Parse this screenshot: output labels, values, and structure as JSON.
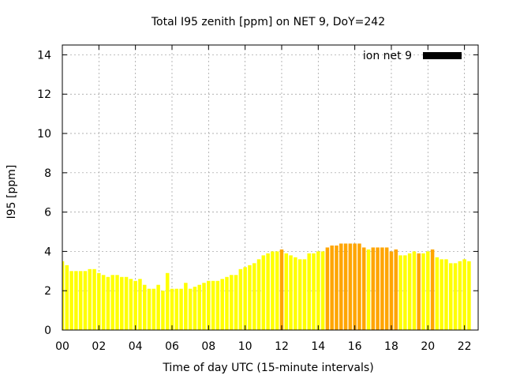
{
  "chart_data": {
    "type": "bar",
    "title": "Total I95 zenith [ppm] on NET 9, DoY=242",
    "xlabel": "Time of day UTC (15-minute intervals)",
    "ylabel": "I95 [ppm]",
    "xlim": [
      0,
      22.75
    ],
    "ylim": [
      0,
      14.5
    ],
    "x_ticks": [
      "00",
      "02",
      "04",
      "06",
      "08",
      "10",
      "12",
      "14",
      "16",
      "18",
      "20",
      "22"
    ],
    "x_tick_values": [
      0,
      2,
      4,
      6,
      8,
      10,
      12,
      14,
      16,
      18,
      20,
      22
    ],
    "y_ticks": [
      0,
      2,
      4,
      6,
      8,
      10,
      12,
      14
    ],
    "grid": true,
    "legend_position": "top-right",
    "colors": {
      "normal": "#ffff00",
      "highlight": "#ffa500",
      "legend": "#000000"
    },
    "series": [
      {
        "name": "ion net 9",
        "x_start": 0,
        "x_step": 0.25,
        "values": [
          3.5,
          3.3,
          3.0,
          3.0,
          3.0,
          3.0,
          3.1,
          3.1,
          2.9,
          2.8,
          2.7,
          2.8,
          2.8,
          2.7,
          2.7,
          2.6,
          2.5,
          2.6,
          2.3,
          2.1,
          2.1,
          2.3,
          2.0,
          2.9,
          2.1,
          2.1,
          2.1,
          2.4,
          2.1,
          2.2,
          2.3,
          2.4,
          2.5,
          2.5,
          2.5,
          2.6,
          2.7,
          2.8,
          2.8,
          3.1,
          3.2,
          3.3,
          3.4,
          3.6,
          3.8,
          3.9,
          4.0,
          4.0,
          4.1,
          3.9,
          3.8,
          3.7,
          3.6,
          3.6,
          3.9,
          3.9,
          4.0,
          4.0,
          4.2,
          4.3,
          4.3,
          4.4,
          4.4,
          4.4,
          4.4,
          4.4,
          4.2,
          4.1,
          4.2,
          4.2,
          4.2,
          4.2,
          4.0,
          4.1,
          3.8,
          3.8,
          3.9,
          4.0,
          3.9,
          3.9,
          4.0,
          4.1,
          3.7,
          3.6,
          3.6,
          3.4,
          3.4,
          3.5,
          3.6,
          3.5
        ],
        "highlight": [
          0,
          0,
          0,
          0,
          0,
          0,
          0,
          0,
          0,
          0,
          0,
          0,
          0,
          0,
          0,
          0,
          0,
          0,
          0,
          0,
          0,
          0,
          0,
          0,
          0,
          0,
          0,
          0,
          0,
          0,
          0,
          0,
          0,
          0,
          0,
          0,
          0,
          0,
          0,
          0,
          0,
          0,
          0,
          0,
          0,
          0,
          0,
          0,
          1,
          0,
          0,
          0,
          0,
          0,
          0,
          0,
          0,
          0,
          1,
          1,
          1,
          1,
          1,
          1,
          1,
          1,
          1,
          0,
          1,
          1,
          1,
          1,
          1,
          1,
          0,
          0,
          0,
          0,
          1,
          0,
          0,
          1,
          0,
          0,
          0,
          0,
          0,
          0,
          0,
          0
        ]
      }
    ]
  }
}
